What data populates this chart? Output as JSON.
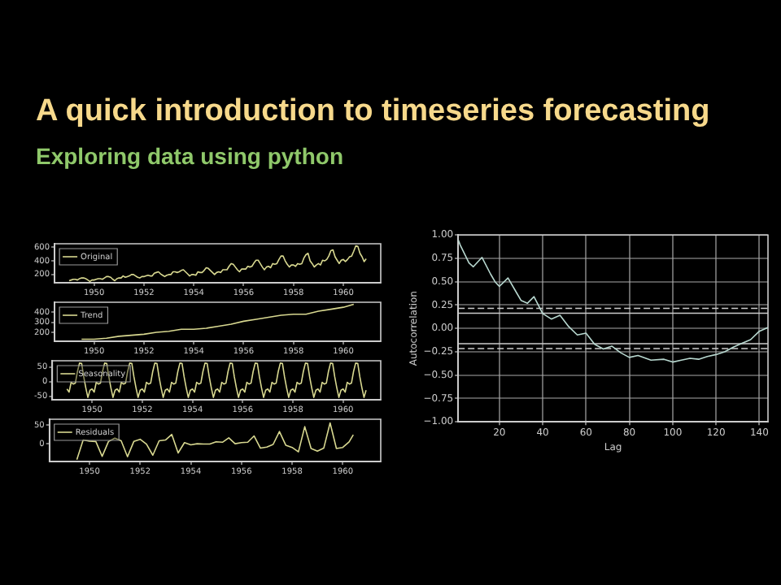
{
  "chart_data": [
    {
      "type": "line",
      "title": "A quick introduction to timeseries forecasting",
      "subtitle": "Exploring data using python",
      "legend": "top left",
      "x": [
        "1949-01",
        "1949-02",
        "1949-03",
        "1949-04",
        "1949-05",
        "1949-06",
        "1949-07",
        "1949-08",
        "1949-09",
        "1949-10",
        "1949-11",
        "1949-12",
        "1950-01",
        "1950-02",
        "1950-03",
        "1950-04",
        "1950-05",
        "1950-06",
        "1950-07",
        "1950-08",
        "1950-09",
        "1950-10",
        "1950-11",
        "1950-12",
        "1951-01",
        "1951-02",
        "1951-03",
        "1951-04",
        "1951-05",
        "1951-06",
        "1951-07",
        "1951-08",
        "1951-09",
        "1951-10",
        "1951-11",
        "1951-12",
        "1952-01",
        "1952-02",
        "1952-03",
        "1952-04",
        "1952-05",
        "1952-06",
        "1952-07",
        "1952-08",
        "1952-09",
        "1952-10",
        "1952-11",
        "1952-12",
        "1953-01",
        "1953-02",
        "1953-03",
        "1953-04",
        "1953-05",
        "1953-06",
        "1953-07",
        "1953-08",
        "1953-09",
        "1953-10",
        "1953-11",
        "1953-12",
        "1954-01",
        "1954-02",
        "1954-03",
        "1954-04",
        "1954-05",
        "1954-06",
        "1954-07",
        "1954-08",
        "1954-09",
        "1954-10",
        "1954-11",
        "1954-12",
        "1955-01",
        "1955-02",
        "1955-03",
        "1955-04",
        "1955-05",
        "1955-06",
        "1955-07",
        "1955-08",
        "1955-09",
        "1955-10",
        "1955-11",
        "1955-12",
        "1956-01",
        "1956-02",
        "1956-03",
        "1956-04",
        "1956-05",
        "1956-06",
        "1956-07",
        "1956-08",
        "1956-09",
        "1956-10",
        "1956-11",
        "1956-12",
        "1957-01",
        "1957-02",
        "1957-03",
        "1957-04",
        "1957-05",
        "1957-06",
        "1957-07",
        "1957-08",
        "1957-09",
        "1957-10",
        "1957-11",
        "1957-12",
        "1958-01",
        "1958-02",
        "1958-03",
        "1958-04",
        "1958-05",
        "1958-06",
        "1958-07",
        "1958-08",
        "1958-09",
        "1958-10",
        "1958-11",
        "1958-12",
        "1959-01",
        "1959-02",
        "1959-03",
        "1959-04",
        "1959-05",
        "1959-06",
        "1959-07",
        "1959-08",
        "1959-09",
        "1959-10",
        "1959-11",
        "1959-12",
        "1960-01",
        "1960-02",
        "1960-03",
        "1960-04",
        "1960-05",
        "1960-06",
        "1960-07",
        "1960-08",
        "1960-09",
        "1960-10",
        "1960-11",
        "1960-12"
      ],
      "series": [
        {
          "name": "Original",
          "color": "#d8d890",
          "values": [
            110,
            120,
            130,
            130,
            120,
            140,
            150,
            150,
            140,
            120,
            100,
            120,
            120,
            130,
            140,
            140,
            130,
            150,
            170,
            170,
            160,
            130,
            110,
            140,
            150,
            150,
            180,
            160,
            170,
            180,
            200,
            200,
            180,
            160,
            150,
            170,
            170,
            180,
            190,
            180,
            180,
            220,
            230,
            240,
            210,
            190,
            170,
            190,
            200,
            200,
            240,
            240,
            230,
            240,
            260,
            270,
            240,
            210,
            180,
            200,
            200,
            190,
            240,
            230,
            230,
            260,
            300,
            290,
            260,
            230,
            200,
            230,
            240,
            230,
            270,
            270,
            270,
            320,
            360,
            350,
            310,
            270,
            240,
            280,
            280,
            280,
            320,
            310,
            320,
            370,
            410,
            410,
            360,
            310,
            270,
            310,
            320,
            300,
            360,
            350,
            360,
            420,
            470,
            470,
            400,
            350,
            310,
            340,
            340,
            320,
            360,
            350,
            360,
            440,
            490,
            510,
            400,
            360,
            310,
            340,
            360,
            340,
            410,
            400,
            420,
            470,
            550,
            560,
            460,
            410,
            360,
            410,
            420,
            390,
            420,
            460,
            470,
            540,
            620,
            610,
            510,
            460,
            390,
            430
          ]
        }
      ],
      "xlim": [
        "1948-06",
        "1961-07"
      ],
      "xticks": [
        "1950",
        "1952",
        "1954",
        "1956",
        "1958",
        "1960"
      ],
      "ylim": [
        80,
        650
      ],
      "yticks": [
        200,
        400,
        600
      ]
    },
    {
      "type": "line",
      "legend": "top left",
      "x": [
        "1949-07",
        "1950-01",
        "1950-07",
        "1951-01",
        "1951-07",
        "1952-01",
        "1952-07",
        "1953-01",
        "1953-07",
        "1954-01",
        "1954-07",
        "1955-01",
        "1955-07",
        "1956-01",
        "1956-07",
        "1957-01",
        "1957-07",
        "1958-01",
        "1958-07",
        "1959-01",
        "1959-07",
        "1960-01",
        "1960-06"
      ],
      "series": [
        {
          "name": "Trend",
          "color": "#d8d890",
          "values": [
            130,
            130,
            140,
            160,
            170,
            180,
            200,
            210,
            230,
            230,
            240,
            260,
            280,
            310,
            330,
            350,
            370,
            380,
            380,
            410,
            430,
            450,
            480
          ]
        }
      ],
      "xlim": [
        "1948-06",
        "1961-07"
      ],
      "xticks": [
        "1950",
        "1952",
        "1954",
        "1956",
        "1958",
        "1960"
      ],
      "ylim": [
        110,
        500
      ],
      "yticks": [
        200,
        300,
        400
      ]
    },
    {
      "type": "line",
      "legend": "top left",
      "x": [
        "1949-01",
        "1949-02",
        "1949-03",
        "1949-04",
        "1949-05",
        "1949-06",
        "1949-07",
        "1949-08",
        "1949-09",
        "1949-10",
        "1949-11",
        "1949-12",
        "1950-01",
        "1950-02",
        "1950-03",
        "1950-04",
        "1950-05",
        "1950-06",
        "1950-07",
        "1950-08",
        "1950-09",
        "1950-10",
        "1950-11",
        "1950-12",
        "1951-01",
        "1951-02",
        "1951-03",
        "1951-04",
        "1951-05",
        "1951-06",
        "1951-07",
        "1951-08",
        "1951-09",
        "1951-10",
        "1951-11",
        "1951-12",
        "1952-01",
        "1952-02",
        "1952-03",
        "1952-04",
        "1952-05",
        "1952-06",
        "1952-07",
        "1952-08",
        "1952-09",
        "1952-10",
        "1952-11",
        "1952-12",
        "1953-01",
        "1953-02",
        "1953-03",
        "1953-04",
        "1953-05",
        "1953-06",
        "1953-07",
        "1953-08",
        "1953-09",
        "1953-10",
        "1953-11",
        "1953-12",
        "1954-01",
        "1954-02",
        "1954-03",
        "1954-04",
        "1954-05",
        "1954-06",
        "1954-07",
        "1954-08",
        "1954-09",
        "1954-10",
        "1954-11",
        "1954-12",
        "1955-01",
        "1955-02",
        "1955-03",
        "1955-04",
        "1955-05",
        "1955-06",
        "1955-07",
        "1955-08",
        "1955-09",
        "1955-10",
        "1955-11",
        "1955-12",
        "1956-01",
        "1956-02",
        "1956-03",
        "1956-04",
        "1956-05",
        "1956-06",
        "1956-07",
        "1956-08",
        "1956-09",
        "1956-10",
        "1956-11",
        "1956-12",
        "1957-01",
        "1957-02",
        "1957-03",
        "1957-04",
        "1957-05",
        "1957-06",
        "1957-07",
        "1957-08",
        "1957-09",
        "1957-10",
        "1957-11",
        "1957-12",
        "1958-01",
        "1958-02",
        "1958-03",
        "1958-04",
        "1958-05",
        "1958-06",
        "1958-07",
        "1958-08",
        "1958-09",
        "1958-10",
        "1958-11",
        "1958-12",
        "1959-01",
        "1959-02",
        "1959-03",
        "1959-04",
        "1959-05",
        "1959-06",
        "1959-07",
        "1959-08",
        "1959-09",
        "1959-10",
        "1959-11",
        "1959-12",
        "1960-01",
        "1960-02",
        "1960-03",
        "1960-04",
        "1960-05",
        "1960-06",
        "1960-07",
        "1960-08",
        "1960-09",
        "1960-10",
        "1960-11",
        "1960-12"
      ],
      "series": [
        {
          "name": "Seasonality",
          "color": "#d8d890",
          "values": [
            -25,
            -36,
            -2,
            -8,
            -5,
            35,
            64,
            63,
            17,
            -21,
            -54,
            -29,
            -25,
            -36,
            -2,
            -8,
            -5,
            35,
            64,
            63,
            17,
            -21,
            -54,
            -29,
            -25,
            -36,
            -2,
            -8,
            -5,
            35,
            64,
            63,
            17,
            -21,
            -54,
            -29,
            -25,
            -36,
            -2,
            -8,
            -5,
            35,
            64,
            63,
            17,
            -21,
            -54,
            -29,
            -25,
            -36,
            -2,
            -8,
            -5,
            35,
            64,
            63,
            17,
            -21,
            -54,
            -29,
            -25,
            -36,
            -2,
            -8,
            -5,
            35,
            64,
            63,
            17,
            -21,
            -54,
            -29,
            -25,
            -36,
            -2,
            -8,
            -5,
            35,
            64,
            63,
            17,
            -21,
            -54,
            -29,
            -25,
            -36,
            -2,
            -8,
            -5,
            35,
            64,
            63,
            17,
            -21,
            -54,
            -29,
            -25,
            -36,
            -2,
            -8,
            -5,
            35,
            64,
            63,
            17,
            -21,
            -54,
            -29,
            -25,
            -36,
            -2,
            -8,
            -5,
            35,
            64,
            63,
            17,
            -21,
            -54,
            -29,
            -25,
            -36,
            -2,
            -8,
            -5,
            35,
            64,
            63,
            17,
            -21,
            -54,
            -29,
            -25,
            -36,
            -2,
            -8,
            -5,
            35,
            64,
            63,
            17,
            -21,
            -54,
            -29
          ]
        }
      ],
      "xlim": [
        "1948-06",
        "1961-07"
      ],
      "xticks": [
        "1950",
        "1952",
        "1954",
        "1956",
        "1958",
        "1960"
      ],
      "ylim": [
        -62,
        72
      ],
      "yticks": [
        -50,
        0,
        50
      ]
    },
    {
      "type": "line",
      "legend": "top left",
      "x": [
        "1949-07",
        "1949-10",
        "1950-01",
        "1950-04",
        "1950-07",
        "1950-10",
        "1951-01",
        "1951-04",
        "1951-07",
        "1951-10",
        "1952-01",
        "1952-04",
        "1952-07",
        "1952-10",
        "1953-01",
        "1953-04",
        "1953-07",
        "1953-10",
        "1954-01",
        "1954-04",
        "1954-07",
        "1954-10",
        "1955-01",
        "1955-04",
        "1955-07",
        "1955-10",
        "1956-01",
        "1956-04",
        "1956-07",
        "1956-10",
        "1957-01",
        "1957-04",
        "1957-07",
        "1957-10",
        "1958-01",
        "1958-04",
        "1958-07",
        "1958-10",
        "1959-01",
        "1959-04",
        "1959-07",
        "1959-10",
        "1960-01",
        "1960-04",
        "1960-06"
      ],
      "series": [
        {
          "name": "Residuals",
          "color": "#d8d890",
          "values": [
            -43,
            10,
            7,
            6,
            -34,
            6,
            15,
            8,
            -35,
            6,
            12,
            -1,
            -31,
            8,
            10,
            25,
            -25,
            3,
            -3,
            0,
            -1,
            -1,
            5,
            4,
            16,
            0,
            3,
            4,
            21,
            -12,
            -9,
            -2,
            33,
            -4,
            -10,
            -22,
            46,
            -13,
            -20,
            -12,
            56,
            -13,
            -10,
            5,
            24
          ]
        }
      ],
      "xlim": [
        "1948-06",
        "1961-07"
      ],
      "xticks": [
        "1950",
        "1952",
        "1954",
        "1956",
        "1958",
        "1960"
      ],
      "ylim": [
        -48,
        66
      ],
      "yticks": [
        0,
        50
      ]
    },
    {
      "type": "line",
      "xlabel": "Lag",
      "ylabel": "Autocorrelation",
      "grid": true,
      "x": [
        1,
        2,
        6,
        8,
        12,
        16,
        18,
        20,
        24,
        28,
        30,
        33,
        36,
        40,
        44,
        48,
        52,
        56,
        60,
        64,
        68,
        72,
        76,
        80,
        84,
        90,
        96,
        100,
        104,
        108,
        112,
        116,
        120,
        124,
        128,
        132,
        136,
        140,
        144
      ],
      "series": [
        {
          "color": "#b8d8d0",
          "values": [
            0.95,
            0.89,
            0.7,
            0.66,
            0.76,
            0.58,
            0.5,
            0.45,
            0.54,
            0.38,
            0.3,
            0.27,
            0.34,
            0.16,
            0.1,
            0.14,
            0.02,
            -0.07,
            -0.05,
            -0.17,
            -0.22,
            -0.19,
            -0.26,
            -0.31,
            -0.29,
            -0.34,
            -0.33,
            -0.36,
            -0.34,
            -0.32,
            -0.33,
            -0.3,
            -0.28,
            -0.25,
            -0.2,
            -0.16,
            -0.12,
            -0.03,
            0.01
          ]
        }
      ],
      "xlim": [
        1,
        144
      ],
      "xticks": [
        20,
        40,
        60,
        80,
        100,
        120,
        140
      ],
      "ylim": [
        -1,
        1
      ],
      "yticks": [
        {
          "value": -1,
          "label": "−1.00"
        },
        {
          "value": -0.75,
          "label": "−0.75"
        },
        {
          "value": -0.5,
          "label": "−0.50"
        },
        {
          "value": -0.25,
          "label": "−0.25"
        },
        {
          "value": 0,
          "label": "0.00"
        },
        {
          "value": 0.25,
          "label": "0.25"
        },
        {
          "value": 0.5,
          "label": "0.50"
        },
        {
          "value": 0.75,
          "label": "0.75"
        },
        {
          "value": 1,
          "label": "1.00"
        }
      ],
      "ref_lines": [
        {
          "axis": "y",
          "value": 0.163,
          "color": "#cccccc",
          "line_style": "solid"
        },
        {
          "axis": "y",
          "value": -0.163,
          "color": "#cccccc",
          "line_style": "solid"
        },
        {
          "axis": "y",
          "value": 0.215,
          "color": "#cccccc",
          "line_style": "dashed"
        },
        {
          "axis": "y",
          "value": -0.215,
          "color": "#cccccc",
          "line_style": "dashed"
        }
      ]
    }
  ]
}
